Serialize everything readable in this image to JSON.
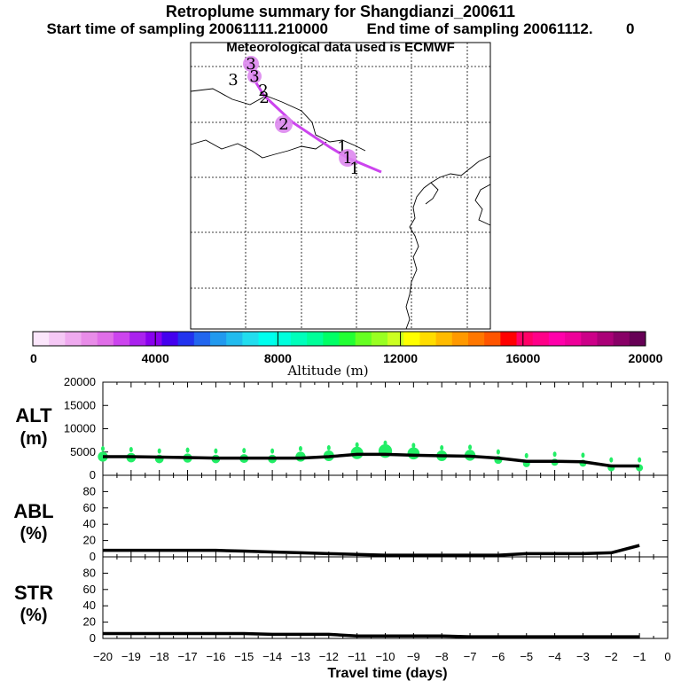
{
  "header": {
    "title": "Retroplume summary for Shangdianzi_200611",
    "start_label": "Start time of sampling 20061111.210000",
    "end_label": "End time of sampling 20061112.",
    "end_value": "0",
    "met_label": "Meteorological data used is ECMWF"
  },
  "map": {
    "plume_color": "#cc44ee",
    "markers": [
      {
        "label": "3"
      },
      {
        "label": "3"
      },
      {
        "label": "3"
      },
      {
        "label": "2"
      },
      {
        "label": "2"
      },
      {
        "label": "2"
      },
      {
        "label": "1"
      },
      {
        "label": "1"
      },
      {
        "label": "1"
      }
    ]
  },
  "colorbar": {
    "ticks": [
      "0",
      "4000",
      "8000",
      "12000",
      "16000",
      "20000"
    ],
    "label": "Altitude (m)",
    "colors": [
      "#fbe6fb",
      "#f5c8f5",
      "#efaaef",
      "#e88ce8",
      "#e06ee8",
      "#cc44ee",
      "#aa22ee",
      "#8800ee",
      "#4400ee",
      "#2233ee",
      "#2266ee",
      "#2299ee",
      "#22bbee",
      "#22ddee",
      "#00ffee",
      "#00ffdd",
      "#00ffbb",
      "#00ff99",
      "#00ff66",
      "#22ff33",
      "#66ff22",
      "#99ff22",
      "#ccff22",
      "#ffff00",
      "#ffdd00",
      "#ffbb00",
      "#ff9900",
      "#ff7700",
      "#ff5500",
      "#ff0000",
      "#ff0066",
      "#ff0088",
      "#ff00aa",
      "#ee0099",
      "#cc0088",
      "#aa0077",
      "#880066",
      "#660055"
    ]
  },
  "chart_data": [
    {
      "type": "line",
      "title": "",
      "ylabel": "ALT (m)",
      "ylabel_line1": "ALT",
      "ylabel_line2": "(m)",
      "xlabel": "Travel time (days)",
      "ylim": [
        0,
        20000
      ],
      "yticks": [
        "0",
        "5000",
        "10000",
        "15000",
        "20000"
      ],
      "x": [
        -20,
        -19,
        -18,
        -17,
        -16,
        -15,
        -14,
        -13,
        -12,
        -11,
        -10,
        -9,
        -8,
        -7,
        -6,
        -5,
        -4,
        -3,
        -2,
        -1
      ],
      "values": [
        4000,
        4000,
        3900,
        3800,
        3700,
        3700,
        3700,
        3700,
        4000,
        4500,
        4500,
        4300,
        4200,
        4100,
        3700,
        3000,
        3000,
        2900,
        2000,
        2000
      ],
      "dots": [
        4000,
        3800,
        3500,
        3700,
        3500,
        3600,
        3500,
        4000,
        4200,
        4800,
        5200,
        4700,
        4200,
        4300,
        3300,
        2500,
        2800,
        2600,
        1600,
        1600
      ],
      "dot_color": "#22ee66"
    },
    {
      "type": "line",
      "ylabel": "ABL (%)",
      "ylabel_line1": "ABL",
      "ylabel_line2": "(%)",
      "ylim": [
        0,
        100
      ],
      "yticks": [
        "0",
        "20",
        "40",
        "60",
        "80"
      ],
      "x": [
        -20,
        -19,
        -18,
        -17,
        -16,
        -15,
        -14,
        -13,
        -12,
        -11,
        -10,
        -9,
        -8,
        -7,
        -6,
        -5,
        -4,
        -3,
        -2,
        -1
      ],
      "values": [
        8,
        8,
        8,
        8,
        8,
        7,
        6,
        5,
        4,
        3,
        2,
        2,
        2,
        2,
        2,
        4,
        4,
        4,
        5,
        14
      ]
    },
    {
      "type": "line",
      "ylabel": "STR (%)",
      "ylabel_line1": "STR",
      "ylabel_line2": "(%)",
      "ylim": [
        0,
        100
      ],
      "yticks": [
        "0",
        "20",
        "40",
        "60",
        "80"
      ],
      "x": [
        -20,
        -19,
        -18,
        -17,
        -16,
        -15,
        -14,
        -13,
        -12,
        -11,
        -10,
        -9,
        -8,
        -7,
        -6,
        -5,
        -4,
        -3,
        -2,
        -1
      ],
      "values": [
        6,
        6,
        6,
        6,
        6,
        6,
        5,
        5,
        5,
        3,
        3,
        3,
        3,
        2,
        2,
        2,
        2,
        2,
        2,
        2
      ]
    }
  ],
  "xaxis": {
    "ticks": [
      "−20",
      "−19",
      "−18",
      "−17",
      "−16",
      "−15",
      "−14",
      "−13",
      "−12",
      "−11",
      "−10",
      "−9",
      "−8",
      "−7",
      "−6",
      "−5",
      "−4",
      "−3",
      "−2",
      "−1",
      "0"
    ],
    "label": "Travel time (days)"
  }
}
